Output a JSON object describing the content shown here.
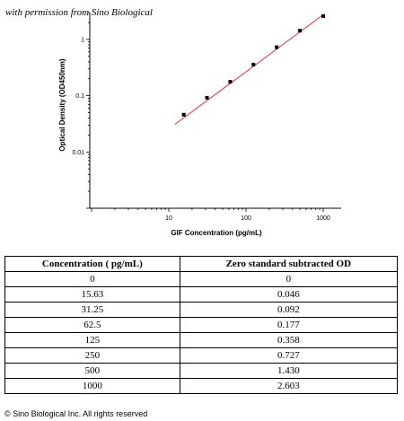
{
  "watermark": "with permission from Sino Biological",
  "copyright": "© Sino Biological Inc. All rights reserved",
  "chart_data": {
    "type": "scatter",
    "xlabel": "GIF Concentration (pg/mL)",
    "ylabel": "Optical Density (OD450nm)",
    "xscale": "log",
    "yscale": "log",
    "xlim": [
      1,
      1000
    ],
    "ylim": [
      0.001,
      3
    ],
    "x_ticks": [
      10,
      100,
      1000
    ],
    "x_tick_labels": [
      "10",
      "100",
      "1000"
    ],
    "y_ticks": [
      0.01,
      0.1,
      1
    ],
    "y_tick_labels": [
      "0.01",
      "0.1",
      "1"
    ],
    "grid": false,
    "points": {
      "x": [
        15.63,
        31.25,
        62.5,
        125,
        250,
        500,
        1000
      ],
      "y": [
        0.046,
        0.092,
        0.177,
        0.358,
        0.727,
        1.43,
        2.603
      ]
    },
    "fit_line": {
      "x": [
        12,
        1000
      ],
      "y": [
        0.031,
        2.75
      ],
      "color": "#e0302a"
    },
    "marker_color": "#000000"
  },
  "table": {
    "headers": [
      "Concentration ( pg/mL)",
      "Zero standard subtracted OD"
    ],
    "rows": [
      [
        "0",
        "0"
      ],
      [
        "15.63",
        "0.046"
      ],
      [
        "31.25",
        "0.092"
      ],
      [
        "62.5",
        "0.177"
      ],
      [
        "125",
        "0.358"
      ],
      [
        "250",
        "0.727"
      ],
      [
        "500",
        "1.430"
      ],
      [
        "1000",
        "2.603"
      ]
    ]
  }
}
